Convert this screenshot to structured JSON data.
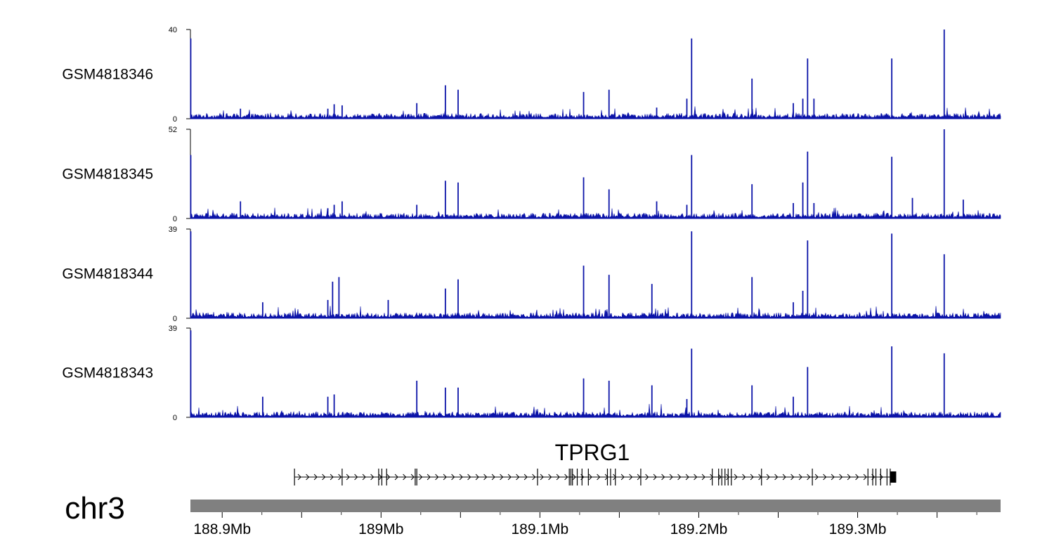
{
  "chart_data": {
    "type": "area",
    "chromosome": "chr3",
    "x_range": [
      188.88,
      189.39
    ],
    "x_unit": "Mb",
    "x_ticks": [
      {
        "value": 188.9,
        "label": "188.9Mb"
      },
      {
        "value": 189.0,
        "label": "189Mb"
      },
      {
        "value": 189.1,
        "label": "189.1Mb"
      },
      {
        "value": 189.2,
        "label": "189.2Mb"
      },
      {
        "value": 189.3,
        "label": "189.3Mb"
      }
    ],
    "x_minor_ticks": [
      188.95,
      189.05,
      189.15,
      189.25,
      189.35
    ],
    "color": "#0b13a8",
    "tracks": [
      {
        "name": "GSM4818346",
        "ymax": 40,
        "ymax_label": "40",
        "ymin_label": "0",
        "baseline": 1.8,
        "peaks": [
          [
            188.8802,
            36
          ],
          [
            188.9115,
            4.5
          ],
          [
            188.9665,
            4.5
          ],
          [
            188.9705,
            6.5
          ],
          [
            188.9755,
            6
          ],
          [
            189.0225,
            7
          ],
          [
            189.0405,
            15
          ],
          [
            189.0485,
            13
          ],
          [
            189.1275,
            12
          ],
          [
            189.1435,
            13
          ],
          [
            189.1735,
            5
          ],
          [
            189.1925,
            9
          ],
          [
            189.1955,
            36
          ],
          [
            189.2335,
            18
          ],
          [
            189.2595,
            7
          ],
          [
            189.2655,
            9
          ],
          [
            189.2685,
            27
          ],
          [
            189.2725,
            9
          ],
          [
            189.3215,
            27
          ],
          [
            189.3545,
            40
          ]
        ]
      },
      {
        "name": "GSM4818345",
        "ymax": 52,
        "ymax_label": "52",
        "ymin_label": "0",
        "baseline": 2.3,
        "peaks": [
          [
            188.8802,
            37
          ],
          [
            188.9115,
            10
          ],
          [
            188.9665,
            6
          ],
          [
            188.9705,
            8
          ],
          [
            188.9755,
            10
          ],
          [
            189.0225,
            8
          ],
          [
            189.0405,
            22
          ],
          [
            189.0485,
            21
          ],
          [
            189.1275,
            24
          ],
          [
            189.1435,
            17
          ],
          [
            189.1735,
            10
          ],
          [
            189.1925,
            8
          ],
          [
            189.1955,
            37
          ],
          [
            189.2335,
            20
          ],
          [
            189.2595,
            9
          ],
          [
            189.2655,
            21
          ],
          [
            189.2685,
            39
          ],
          [
            189.2725,
            9
          ],
          [
            189.3215,
            36
          ],
          [
            189.3345,
            12
          ],
          [
            189.3545,
            52
          ],
          [
            189.3665,
            11
          ]
        ]
      },
      {
        "name": "GSM4818344",
        "ymax": 39,
        "ymax_label": "39",
        "ymin_label": "0",
        "baseline": 1.8,
        "peaks": [
          [
            188.8802,
            38
          ],
          [
            188.9255,
            7
          ],
          [
            188.9665,
            8
          ],
          [
            188.9695,
            16
          ],
          [
            188.9735,
            18
          ],
          [
            189.0045,
            8
          ],
          [
            189.0405,
            13
          ],
          [
            189.0485,
            17
          ],
          [
            189.1275,
            23
          ],
          [
            189.1435,
            19
          ],
          [
            189.1705,
            15
          ],
          [
            189.1955,
            38
          ],
          [
            189.2335,
            18
          ],
          [
            189.2595,
            7
          ],
          [
            189.2655,
            12
          ],
          [
            189.2685,
            34
          ],
          [
            189.3215,
            37
          ],
          [
            189.3545,
            28
          ]
        ]
      },
      {
        "name": "GSM4818343",
        "ymax": 39,
        "ymax_label": "39",
        "ymin_label": "0",
        "baseline": 1.8,
        "peaks": [
          [
            188.8802,
            38
          ],
          [
            188.9255,
            9
          ],
          [
            188.9665,
            9
          ],
          [
            188.9705,
            10
          ],
          [
            189.0225,
            16
          ],
          [
            189.0405,
            13
          ],
          [
            189.0485,
            13
          ],
          [
            189.1275,
            17
          ],
          [
            189.1435,
            16
          ],
          [
            189.1705,
            14
          ],
          [
            189.1925,
            8
          ],
          [
            189.1955,
            30
          ],
          [
            189.2335,
            14
          ],
          [
            189.2595,
            9
          ],
          [
            189.2685,
            22
          ],
          [
            189.3215,
            31
          ],
          [
            189.3545,
            28
          ]
        ]
      }
    ],
    "gene": {
      "name": "TPRG1",
      "strand": "+",
      "start": 188.9455,
      "end": 189.3225,
      "exons": [
        188.9455,
        188.9755,
        188.9985,
        189.0005,
        189.0035,
        189.0215,
        189.0225,
        189.0985,
        189.1185,
        189.1195,
        189.1205,
        189.1235,
        189.1265,
        189.1305,
        189.1425,
        189.1445,
        189.1475,
        189.1635,
        189.2085,
        189.2125,
        189.2145,
        189.2165,
        189.2185,
        189.2205,
        189.2395,
        189.2715,
        189.3065,
        189.3095,
        189.3115,
        189.3145,
        189.3185,
        189.3205
      ],
      "thick_end_block": [
        189.3205,
        189.3225
      ]
    }
  }
}
